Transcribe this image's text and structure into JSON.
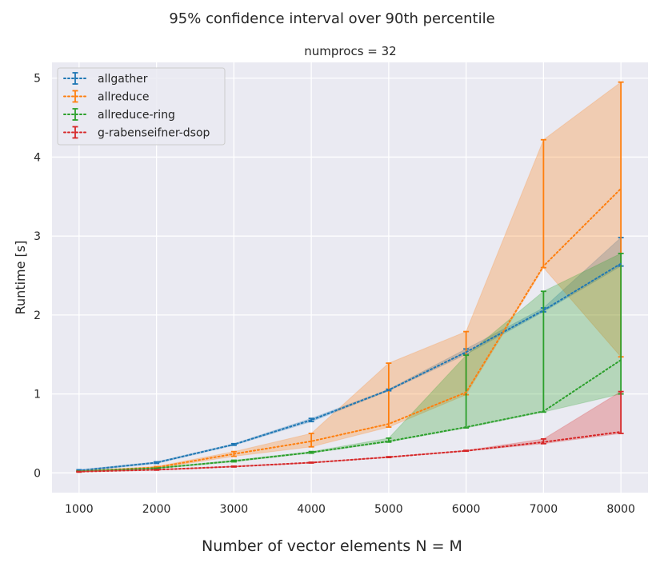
{
  "figure": {
    "suptitle": "95% confidence interval over 90th percentile",
    "supxlabel": "Number of vector elements N = M"
  },
  "chart_data": {
    "type": "line",
    "title": "numprocs = 32",
    "xlabel": "",
    "ylabel": "Runtime [s]",
    "x": [
      1000,
      2000,
      3000,
      4000,
      5000,
      6000,
      7000,
      8000
    ],
    "xticks": [
      "1000",
      "2000",
      "3000",
      "4000",
      "5000",
      "6000",
      "7000",
      "8000"
    ],
    "yticks": [
      "0",
      "1",
      "2",
      "3",
      "4",
      "5"
    ],
    "xlim": [
      650,
      8350
    ],
    "ylim": [
      -0.25,
      5.2
    ],
    "grid": true,
    "background": "#eaeaf2",
    "legend_position": "top-left",
    "line_style": "dotted",
    "series": [
      {
        "name": "allgather",
        "color": "#1f77b4",
        "values": [
          0.03,
          0.13,
          0.36,
          0.67,
          1.05,
          1.53,
          2.06,
          2.65
        ],
        "lower": [
          0.02,
          0.12,
          0.35,
          0.65,
          1.04,
          1.5,
          2.04,
          2.62
        ],
        "upper": [
          0.04,
          0.14,
          0.37,
          0.69,
          1.06,
          1.57,
          2.09,
          2.98
        ]
      },
      {
        "name": "allreduce",
        "color": "#ff7f0e",
        "values": [
          0.02,
          0.07,
          0.24,
          0.4,
          0.62,
          1.02,
          2.62,
          3.6
        ],
        "lower": [
          0.015,
          0.06,
          0.21,
          0.33,
          0.58,
          0.99,
          2.6,
          1.47
        ],
        "upper": [
          0.025,
          0.08,
          0.27,
          0.5,
          1.39,
          1.79,
          4.22,
          4.95
        ]
      },
      {
        "name": "allreduce-ring",
        "color": "#2ca02c",
        "values": [
          0.02,
          0.06,
          0.15,
          0.26,
          0.4,
          0.58,
          0.78,
          1.43
        ],
        "lower": [
          0.015,
          0.055,
          0.14,
          0.25,
          0.39,
          0.57,
          0.77,
          1.0
        ],
        "upper": [
          0.025,
          0.065,
          0.16,
          0.27,
          0.44,
          1.49,
          2.3,
          2.78
        ]
      },
      {
        "name": "g-rabenseifner-dsop",
        "color": "#d62728",
        "values": [
          0.015,
          0.04,
          0.08,
          0.13,
          0.2,
          0.28,
          0.39,
          0.52
        ],
        "lower": [
          0.01,
          0.035,
          0.075,
          0.125,
          0.195,
          0.275,
          0.37,
          0.5
        ],
        "upper": [
          0.02,
          0.045,
          0.085,
          0.135,
          0.205,
          0.285,
          0.43,
          1.03
        ]
      }
    ]
  }
}
